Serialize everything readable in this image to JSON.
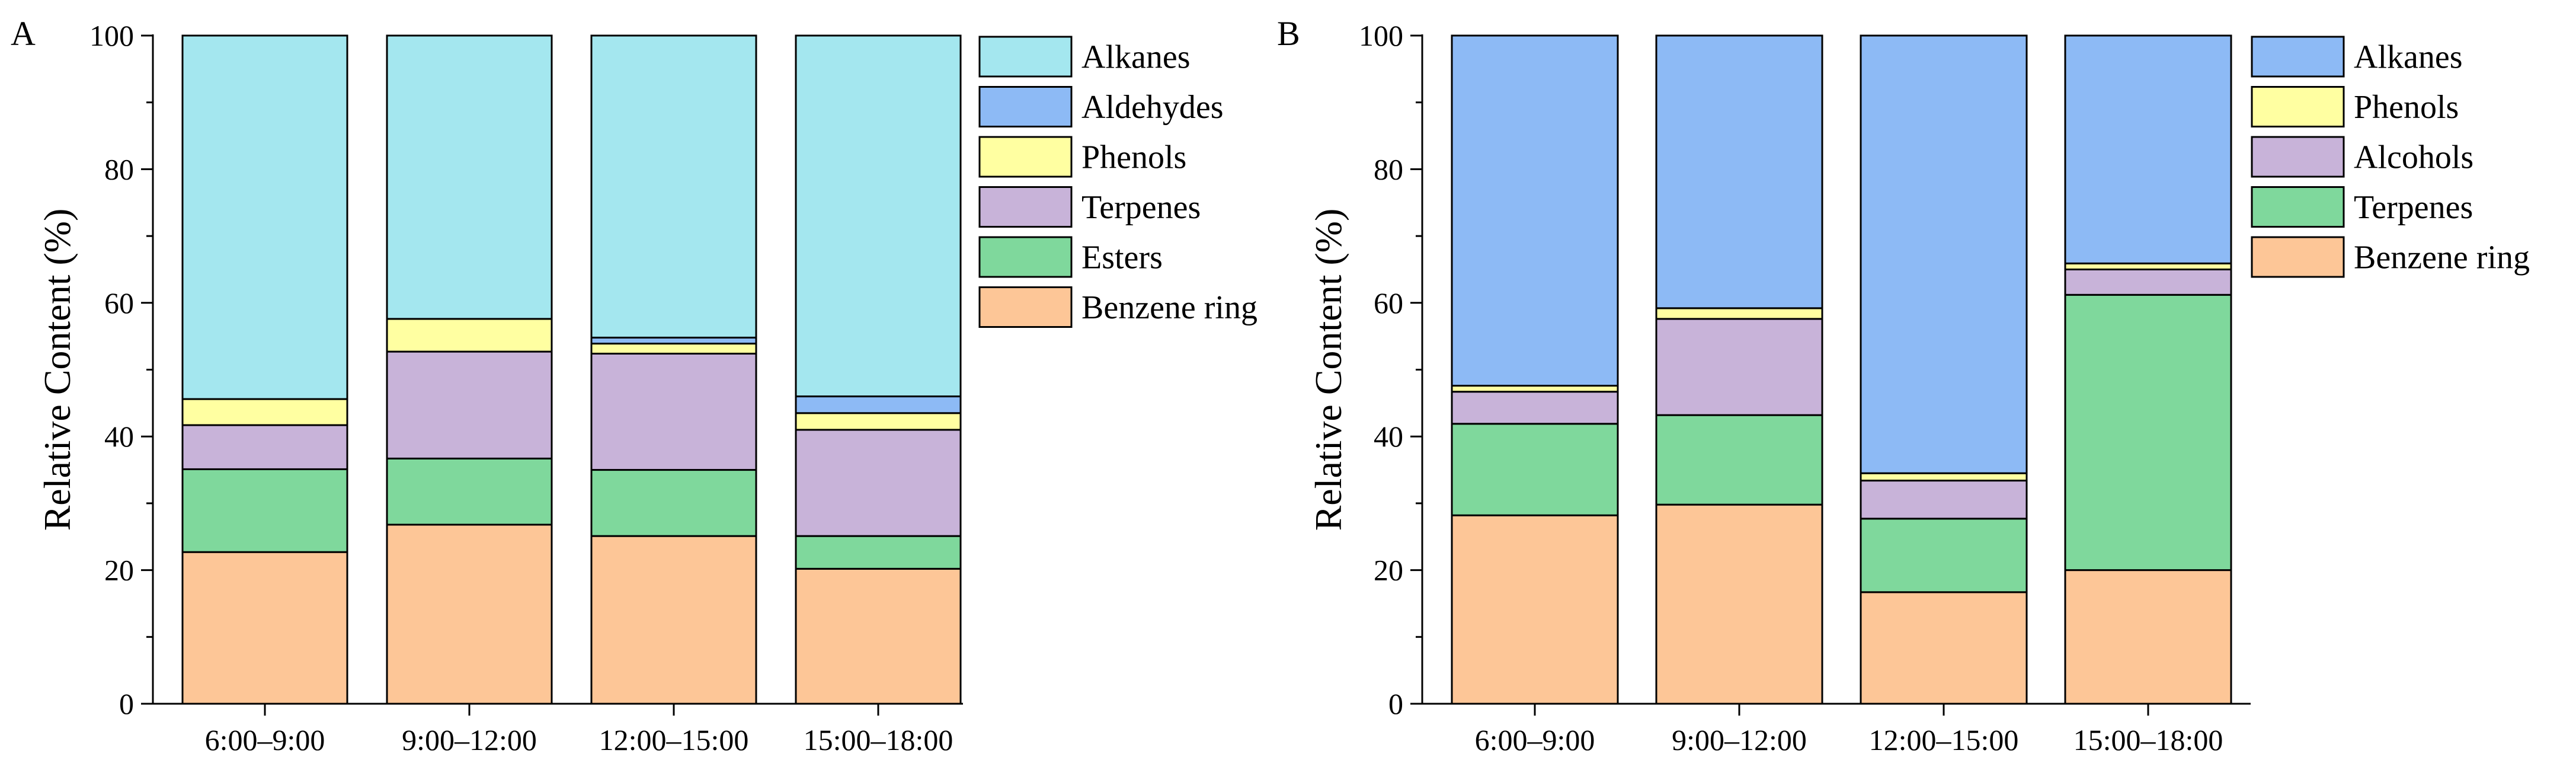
{
  "figure": {
    "panels": [
      "A",
      "B"
    ]
  },
  "chart_data": [
    {
      "panel": "A",
      "type": "bar",
      "stacked": true,
      "title": "",
      "xlabel": "",
      "ylabel": "Relative Content (%)",
      "ylim": [
        0,
        100
      ],
      "yticks": [
        0,
        20,
        40,
        60,
        80,
        100
      ],
      "categories": [
        "6:00–9:00",
        "9:00–12:00",
        "12:00–15:00",
        "15:00–18:00"
      ],
      "legend_position": "top-right",
      "series": [
        {
          "name": "Benzene ring",
          "color": "#FDC697",
          "values": [
            22.7,
            26.8,
            25.1,
            20.2
          ]
        },
        {
          "name": "Esters",
          "color": "#7FD89C",
          "values": [
            12.4,
            9.9,
            9.9,
            4.9
          ]
        },
        {
          "name": "Terpenes",
          "color": "#C8B3D9",
          "values": [
            6.6,
            16.0,
            17.4,
            15.9
          ]
        },
        {
          "name": "Phenols",
          "color": "#FFFFA1",
          "values": [
            3.9,
            4.9,
            1.5,
            2.5
          ]
        },
        {
          "name": "Aldehydes",
          "color": "#8DBAF5",
          "values": [
            0.0,
            0.0,
            0.9,
            2.5
          ]
        },
        {
          "name": "Alkanes",
          "color": "#A4E7EF",
          "values": [
            54.4,
            42.4,
            45.2,
            54.0
          ]
        }
      ]
    },
    {
      "panel": "B",
      "type": "bar",
      "stacked": true,
      "title": "",
      "xlabel": "",
      "ylabel": "Relative Content (%)",
      "ylim": [
        0,
        100
      ],
      "yticks": [
        0,
        20,
        40,
        60,
        80,
        100
      ],
      "categories": [
        "6:00–9:00",
        "9:00–12:00",
        "12:00–15:00",
        "15:00–18:00"
      ],
      "legend_position": "top-right",
      "series": [
        {
          "name": "Benzene ring",
          "color": "#FDC697",
          "values": [
            28.2,
            29.8,
            16.7,
            20.0
          ]
        },
        {
          "name": "Terpenes",
          "color": "#7FD89C",
          "values": [
            13.7,
            13.4,
            11.0,
            41.2
          ]
        },
        {
          "name": "Alcohols",
          "color": "#C8B3D9",
          "values": [
            4.8,
            14.4,
            5.7,
            3.8
          ]
        },
        {
          "name": "Phenols",
          "color": "#FFFFA1",
          "values": [
            0.9,
            1.6,
            1.1,
            0.9
          ]
        },
        {
          "name": "Alkanes",
          "color": "#8DBAF5",
          "values": [
            52.4,
            40.8,
            65.5,
            34.1
          ]
        }
      ]
    }
  ]
}
